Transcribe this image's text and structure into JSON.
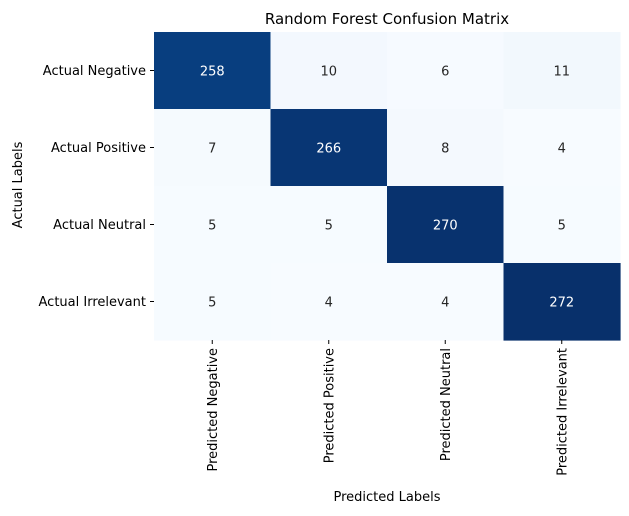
{
  "chart_data": {
    "type": "heatmap",
    "title": "Random Forest Confusion Matrix",
    "xlabel": "Predicted Labels",
    "ylabel": "Actual Labels",
    "x_categories": [
      "Predicted Negative",
      "Predicted Positive",
      "Predicted Neutral",
      "Predicted Irrelevant"
    ],
    "y_categories": [
      "Actual Negative",
      "Actual Positive",
      "Actual Neutral",
      "Actual Irrelevant"
    ],
    "values": [
      [
        258,
        10,
        6,
        11
      ],
      [
        7,
        266,
        8,
        4
      ],
      [
        5,
        5,
        270,
        5
      ],
      [
        5,
        4,
        4,
        272
      ]
    ],
    "colormap": "Blues",
    "color_low": "#f7fbff",
    "color_high": "#08306b",
    "annotation_color_dark_cell": "#ffffff",
    "annotation_color_light_cell": "#262626",
    "colorbar": false
  }
}
